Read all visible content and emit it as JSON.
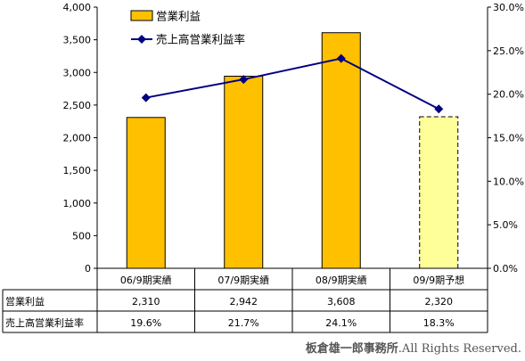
{
  "chart_data": {
    "type": "bar",
    "categories": [
      "06/9期実績",
      "07/9期実績",
      "08/9期実績",
      "09/9期予想"
    ],
    "series": [
      {
        "name": "営業利益",
        "kind": "bar",
        "axis": "left",
        "values": [
          2310,
          2942,
          3608,
          2320
        ],
        "color": "#FFC000",
        "forecast_color": "#FFFF99"
      },
      {
        "name": "売上高営業利益率",
        "kind": "line",
        "axis": "right",
        "values": [
          19.6,
          21.7,
          24.1,
          18.3
        ],
        "color": "#000080"
      }
    ],
    "y_left": {
      "min": 0,
      "max": 4000,
      "step": 500,
      "ticks": [
        "0",
        "500",
        "1,000",
        "1,500",
        "2,000",
        "2,500",
        "3,000",
        "3,500",
        "4,000"
      ]
    },
    "y_right": {
      "min": 0,
      "max": 30,
      "step": 5,
      "ticks": [
        "0.0%",
        "5.0%",
        "10.0%",
        "15.0%",
        "20.0%",
        "25.0%",
        "30.0%"
      ]
    },
    "legend": {
      "placement": "top-left",
      "bar_label": "営業利益",
      "line_label": "売上高営業利益率"
    },
    "data_table": {
      "rows": [
        {
          "label": "営業利益",
          "cells": [
            "2,310",
            "2,942",
            "3,608",
            "2,320"
          ]
        },
        {
          "label": "売上高営業利益率",
          "cells": [
            "19.6%",
            "21.7%",
            "24.1%",
            "18.3%"
          ]
        }
      ]
    },
    "grid": false,
    "last_bar_dashed": true
  },
  "footer": {
    "author": "板倉雄一郎事務所",
    "rights": ".All Rights Reserved."
  }
}
